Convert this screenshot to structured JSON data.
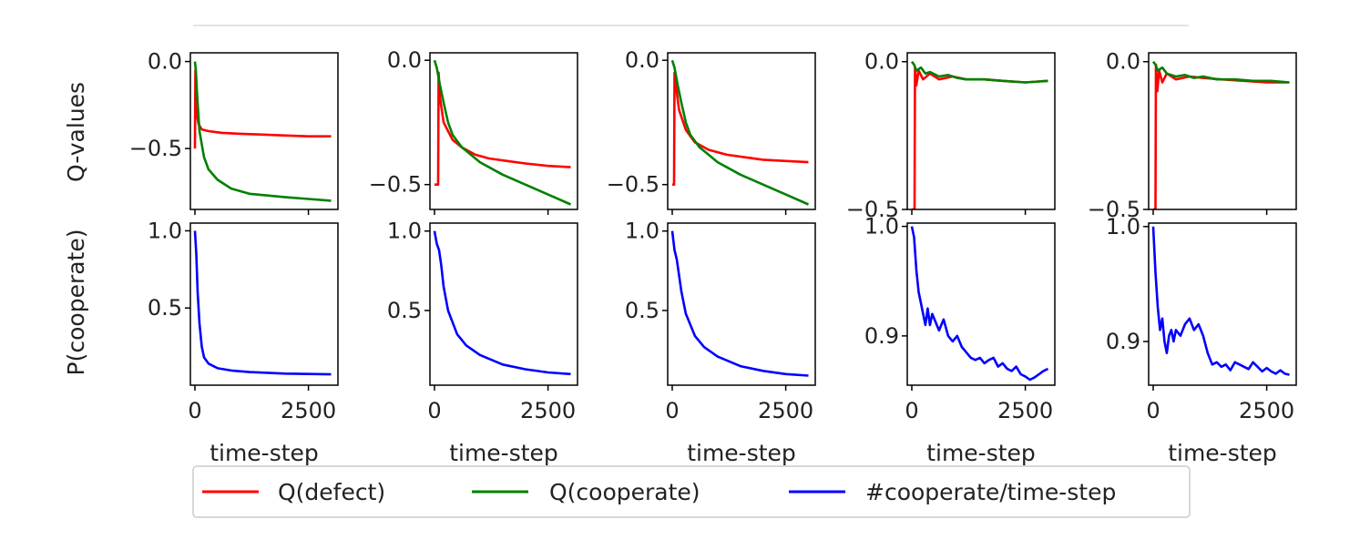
{
  "chart_data": {
    "type": "line",
    "layout": "2 rows x 5 columns of small multiples",
    "xlabel": "time-step",
    "ylabel_top": "Q-values",
    "ylabel_bottom": "P(cooperate)",
    "legend": {
      "placement": "bottom-center",
      "entries": [
        {
          "label": "Q(defect)",
          "color": "#ff0000"
        },
        {
          "label": "Q(cooperate)",
          "color": "#008000"
        },
        {
          "label": "#cooperate/time-step",
          "color": "#0000ff"
        }
      ]
    },
    "xlim": [
      -100,
      3150
    ],
    "xticks": [
      0,
      2500
    ],
    "xtick_labels": [
      "0",
      "2500"
    ],
    "columns": [
      {
        "q_ylim": [
          -0.85,
          0.05
        ],
        "q_yticks": [
          0,
          -0.5
        ],
        "q_ytick_labels": [
          "0.0",
          "−0.5"
        ],
        "q_defect": {
          "x": [
            0,
            10,
            20,
            40,
            80,
            150,
            300,
            600,
            1000,
            1500,
            2000,
            2500,
            3000
          ],
          "y": [
            -0.5,
            -0.05,
            -0.25,
            -0.3,
            -0.36,
            -0.39,
            -0.4,
            -0.41,
            -0.415,
            -0.42,
            -0.425,
            -0.43,
            -0.43
          ]
        },
        "q_cooperate": {
          "x": [
            0,
            20,
            50,
            100,
            200,
            300,
            500,
            800,
            1200,
            1600,
            2000,
            2500,
            3000
          ],
          "y": [
            0.0,
            -0.05,
            -0.2,
            -0.4,
            -0.55,
            -0.62,
            -0.68,
            -0.73,
            -0.76,
            -0.77,
            -0.78,
            -0.79,
            -0.8
          ]
        },
        "p_ylim": [
          0.0,
          1.05
        ],
        "p_yticks": [
          1.0,
          0.5
        ],
        "p_ytick_labels": [
          "1.0",
          "0.5"
        ],
        "p_cooperate": {
          "x": [
            0,
            30,
            60,
            100,
            150,
            200,
            300,
            500,
            800,
            1200,
            2000,
            3000
          ],
          "y": [
            1.0,
            0.85,
            0.6,
            0.4,
            0.25,
            0.18,
            0.14,
            0.11,
            0.095,
            0.085,
            0.075,
            0.07
          ]
        }
      },
      {
        "q_ylim": [
          -0.6,
          0.03
        ],
        "q_yticks": [
          0,
          -0.5
        ],
        "q_ytick_labels": [
          "0.0",
          "−0.5"
        ],
        "q_defect": {
          "x": [
            0,
            80,
            90,
            120,
            200,
            400,
            600,
            900,
            1200,
            1600,
            2000,
            2500,
            3000
          ],
          "y": [
            -0.5,
            -0.5,
            -0.05,
            -0.15,
            -0.25,
            -0.32,
            -0.35,
            -0.38,
            -0.395,
            -0.405,
            -0.415,
            -0.425,
            -0.43
          ]
        },
        "q_cooperate": {
          "x": [
            0,
            50,
            120,
            200,
            300,
            400,
            600,
            800,
            1000,
            1500,
            2000,
            2500,
            3000
          ],
          "y": [
            0.0,
            -0.03,
            -0.1,
            -0.17,
            -0.25,
            -0.3,
            -0.35,
            -0.38,
            -0.41,
            -0.46,
            -0.5,
            -0.54,
            -0.58
          ]
        },
        "p_ylim": [
          0.03,
          1.05
        ],
        "p_yticks": [
          1.0,
          0.5
        ],
        "p_ytick_labels": [
          "1.0",
          "0.5"
        ],
        "p_cooperate": {
          "x": [
            0,
            50,
            100,
            150,
            200,
            300,
            500,
            700,
            1000,
            1500,
            2000,
            2500,
            3000
          ],
          "y": [
            1.0,
            0.92,
            0.88,
            0.78,
            0.65,
            0.5,
            0.35,
            0.28,
            0.22,
            0.16,
            0.13,
            0.11,
            0.1
          ]
        }
      },
      {
        "q_ylim": [
          -0.6,
          0.03
        ],
        "q_yticks": [
          0,
          -0.5
        ],
        "q_ytick_labels": [
          "0.0",
          "−0.5"
        ],
        "q_defect": {
          "x": [
            0,
            40,
            50,
            80,
            150,
            300,
            500,
            800,
            1200,
            1600,
            2000,
            2500,
            3000
          ],
          "y": [
            -0.5,
            -0.5,
            -0.05,
            -0.1,
            -0.2,
            -0.28,
            -0.33,
            -0.36,
            -0.38,
            -0.39,
            -0.4,
            -0.405,
            -0.41
          ]
        },
        "q_cooperate": {
          "x": [
            0,
            50,
            120,
            200,
            300,
            400,
            600,
            800,
            1000,
            1500,
            2000,
            2500,
            3000
          ],
          "y": [
            0.0,
            -0.03,
            -0.1,
            -0.17,
            -0.25,
            -0.3,
            -0.35,
            -0.38,
            -0.41,
            -0.46,
            -0.5,
            -0.54,
            -0.58
          ]
        },
        "p_ylim": [
          0.03,
          1.05
        ],
        "p_yticks": [
          1.0,
          0.5
        ],
        "p_ytick_labels": [
          "1.0",
          "0.5"
        ],
        "p_cooperate": {
          "x": [
            0,
            50,
            100,
            150,
            200,
            300,
            500,
            700,
            1000,
            1500,
            2000,
            2500,
            3000
          ],
          "y": [
            1.0,
            0.88,
            0.82,
            0.72,
            0.62,
            0.48,
            0.34,
            0.27,
            0.21,
            0.15,
            0.12,
            0.1,
            0.09
          ]
        }
      },
      {
        "q_ylim": [
          -0.5,
          0.03
        ],
        "q_yticks": [
          0,
          -0.5
        ],
        "q_ytick_labels": [
          "0.0",
          "−0.5"
        ],
        "q_defect": {
          "x": [
            0,
            60,
            70,
            100,
            150,
            250,
            400,
            600,
            900,
            1200,
            1600,
            2000,
            2500,
            3000
          ],
          "y": [
            -0.5,
            -0.5,
            -0.02,
            -0.08,
            -0.03,
            -0.06,
            -0.04,
            -0.06,
            -0.05,
            -0.06,
            -0.06,
            -0.065,
            -0.07,
            -0.065
          ]
        },
        "q_cooperate": {
          "x": [
            0,
            50,
            100,
            200,
            300,
            400,
            600,
            800,
            1000,
            1200,
            1600,
            2000,
            2500,
            3000
          ],
          "y": [
            0.0,
            -0.01,
            -0.03,
            -0.02,
            -0.04,
            -0.035,
            -0.05,
            -0.045,
            -0.055,
            -0.06,
            -0.06,
            -0.065,
            -0.07,
            -0.065
          ]
        },
        "p_ylim": [
          0.855,
          1.003
        ],
        "p_yticks": [
          1.0,
          0.9
        ],
        "p_ytick_labels": [
          "1.0",
          "0.9"
        ],
        "p_cooperate": {
          "x": [
            0,
            50,
            100,
            150,
            200,
            250,
            300,
            350,
            400,
            450,
            500,
            600,
            700,
            800,
            900,
            1000,
            1100,
            1200,
            1300,
            1400,
            1500,
            1600,
            1700,
            1800,
            1900,
            2000,
            2100,
            2200,
            2300,
            2400,
            2500,
            2600,
            2700,
            2800,
            2900,
            3000
          ],
          "y": [
            1.0,
            0.99,
            0.96,
            0.94,
            0.93,
            0.92,
            0.91,
            0.925,
            0.91,
            0.92,
            0.915,
            0.905,
            0.915,
            0.9,
            0.895,
            0.9,
            0.89,
            0.885,
            0.88,
            0.878,
            0.88,
            0.875,
            0.878,
            0.88,
            0.872,
            0.875,
            0.87,
            0.868,
            0.872,
            0.865,
            0.863,
            0.86,
            0.862,
            0.865,
            0.868,
            0.87
          ]
        }
      },
      {
        "q_ylim": [
          -0.5,
          0.03
        ],
        "q_yticks": [
          0,
          -0.5
        ],
        "q_ytick_labels": [
          "0.0",
          "−0.5"
        ],
        "q_defect": {
          "x": [
            0,
            50,
            60,
            90,
            130,
            200,
            300,
            500,
            800,
            1100,
            1500,
            2000,
            2500,
            3000
          ],
          "y": [
            -0.5,
            -0.5,
            -0.01,
            -0.1,
            -0.03,
            -0.07,
            -0.04,
            -0.06,
            -0.05,
            -0.055,
            -0.06,
            -0.065,
            -0.07,
            -0.07
          ]
        },
        "q_cooperate": {
          "x": [
            0,
            50,
            100,
            200,
            300,
            500,
            700,
            900,
            1100,
            1400,
            1800,
            2200,
            2600,
            3000
          ],
          "y": [
            0.0,
            -0.01,
            -0.03,
            -0.02,
            -0.04,
            -0.05,
            -0.045,
            -0.055,
            -0.05,
            -0.06,
            -0.06,
            -0.065,
            -0.065,
            -0.07
          ]
        },
        "p_ylim": [
          0.862,
          1.003
        ],
        "p_yticks": [
          1.0,
          0.9
        ],
        "p_ytick_labels": [
          "1.0",
          "0.9"
        ],
        "p_cooperate": {
          "x": [
            0,
            50,
            100,
            150,
            200,
            250,
            300,
            350,
            400,
            450,
            500,
            600,
            700,
            800,
            900,
            1000,
            1100,
            1200,
            1300,
            1400,
            1500,
            1600,
            1700,
            1800,
            1900,
            2000,
            2100,
            2200,
            2300,
            2400,
            2500,
            2600,
            2700,
            2800,
            2900,
            3000
          ],
          "y": [
            1.0,
            0.96,
            0.93,
            0.91,
            0.92,
            0.9,
            0.89,
            0.905,
            0.91,
            0.9,
            0.91,
            0.905,
            0.915,
            0.92,
            0.91,
            0.915,
            0.905,
            0.89,
            0.88,
            0.882,
            0.878,
            0.88,
            0.875,
            0.882,
            0.88,
            0.878,
            0.876,
            0.882,
            0.878,
            0.874,
            0.877,
            0.874,
            0.872,
            0.875,
            0.872,
            0.871
          ]
        }
      }
    ]
  }
}
